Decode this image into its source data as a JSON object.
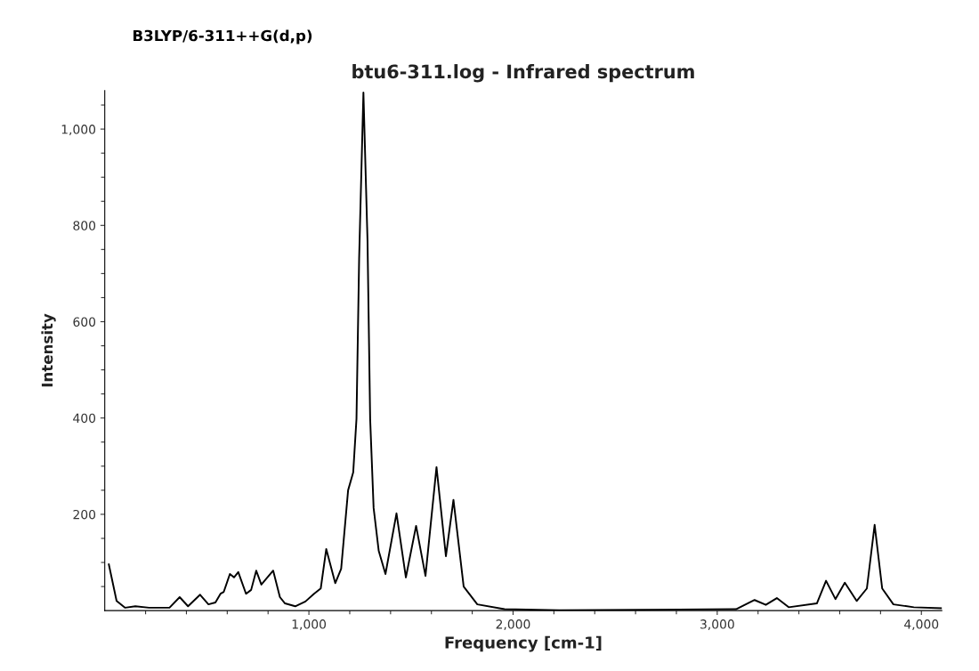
{
  "chart_data": {
    "type": "line",
    "title": "btu6-311.log - Infrared spectrum",
    "xlabel": "Frequency [cm-1]",
    "ylabel": "Intensity",
    "annotations": [
      "B3LYP/6-311++G(d,p)"
    ],
    "x": [
      20,
      58,
      100,
      150,
      217,
      317,
      367,
      408,
      467,
      508,
      542,
      567,
      583,
      613,
      633,
      654,
      692,
      717,
      742,
      767,
      825,
      858,
      883,
      933,
      983,
      1025,
      1058,
      1085,
      1129,
      1158,
      1192,
      1217,
      1233,
      1246,
      1267,
      1287,
      1300,
      1317,
      1342,
      1375,
      1429,
      1475,
      1525,
      1571,
      1625,
      1671,
      1708,
      1758,
      1825,
      1958,
      2225,
      3092,
      3183,
      3238,
      3292,
      3350,
      3488,
      3533,
      3579,
      3625,
      3683,
      3733,
      3771,
      3808,
      3863,
      3963,
      4100
    ],
    "series": [
      {
        "color": "#000000",
        "values": [
          96,
          20,
          6,
          9,
          6,
          6,
          28,
          9,
          33,
          13,
          17,
          35,
          39,
          76,
          69,
          80,
          35,
          43,
          83,
          54,
          83,
          28,
          15,
          9,
          19,
          35,
          46,
          128,
          57,
          87,
          250,
          287,
          398,
          731,
          1076,
          769,
          398,
          213,
          124,
          76,
          202,
          69,
          176,
          72,
          298,
          113,
          230,
          50,
          13,
          3,
          1,
          3,
          22,
          12,
          26,
          7,
          15,
          62,
          24,
          58,
          20,
          46,
          178,
          46,
          13,
          7,
          5
        ]
      }
    ],
    "xlim": [
      0,
      4100
    ],
    "xticks": [
      {
        "value": 200,
        "label": null
      },
      {
        "value": 400,
        "label": null
      },
      {
        "value": 600,
        "label": null
      },
      {
        "value": 800,
        "label": null
      },
      {
        "value": 1000,
        "label": "1,000"
      },
      {
        "value": 1200,
        "label": null
      },
      {
        "value": 1400,
        "label": null
      },
      {
        "value": 1600,
        "label": null
      },
      {
        "value": 1800,
        "label": null
      },
      {
        "value": 2000,
        "label": "2,000"
      },
      {
        "value": 2200,
        "label": null
      },
      {
        "value": 2400,
        "label": null
      },
      {
        "value": 2600,
        "label": null
      },
      {
        "value": 2800,
        "label": null
      },
      {
        "value": 3000,
        "label": "3,000"
      },
      {
        "value": 3200,
        "label": null
      },
      {
        "value": 3400,
        "label": null
      },
      {
        "value": 3600,
        "label": null
      },
      {
        "value": 3800,
        "label": null
      },
      {
        "value": 4000,
        "label": "4,000"
      }
    ],
    "ylim": [
      0,
      1080
    ],
    "yticks": [
      {
        "value": 50,
        "label": null
      },
      {
        "value": 100,
        "label": null
      },
      {
        "value": 150,
        "label": null
      },
      {
        "value": 200,
        "label": "200"
      },
      {
        "value": 250,
        "label": null
      },
      {
        "value": 300,
        "label": null
      },
      {
        "value": 350,
        "label": null
      },
      {
        "value": 400,
        "label": "400"
      },
      {
        "value": 450,
        "label": null
      },
      {
        "value": 500,
        "label": null
      },
      {
        "value": 550,
        "label": null
      },
      {
        "value": 600,
        "label": "600"
      },
      {
        "value": 650,
        "label": null
      },
      {
        "value": 700,
        "label": null
      },
      {
        "value": 750,
        "label": null
      },
      {
        "value": 800,
        "label": "800"
      },
      {
        "value": 850,
        "label": null
      },
      {
        "value": 900,
        "label": null
      },
      {
        "value": 950,
        "label": null
      },
      {
        "value": 1000,
        "label": "1,000"
      },
      {
        "value": 1050,
        "label": null
      }
    ],
    "grid": false,
    "legend": false
  }
}
